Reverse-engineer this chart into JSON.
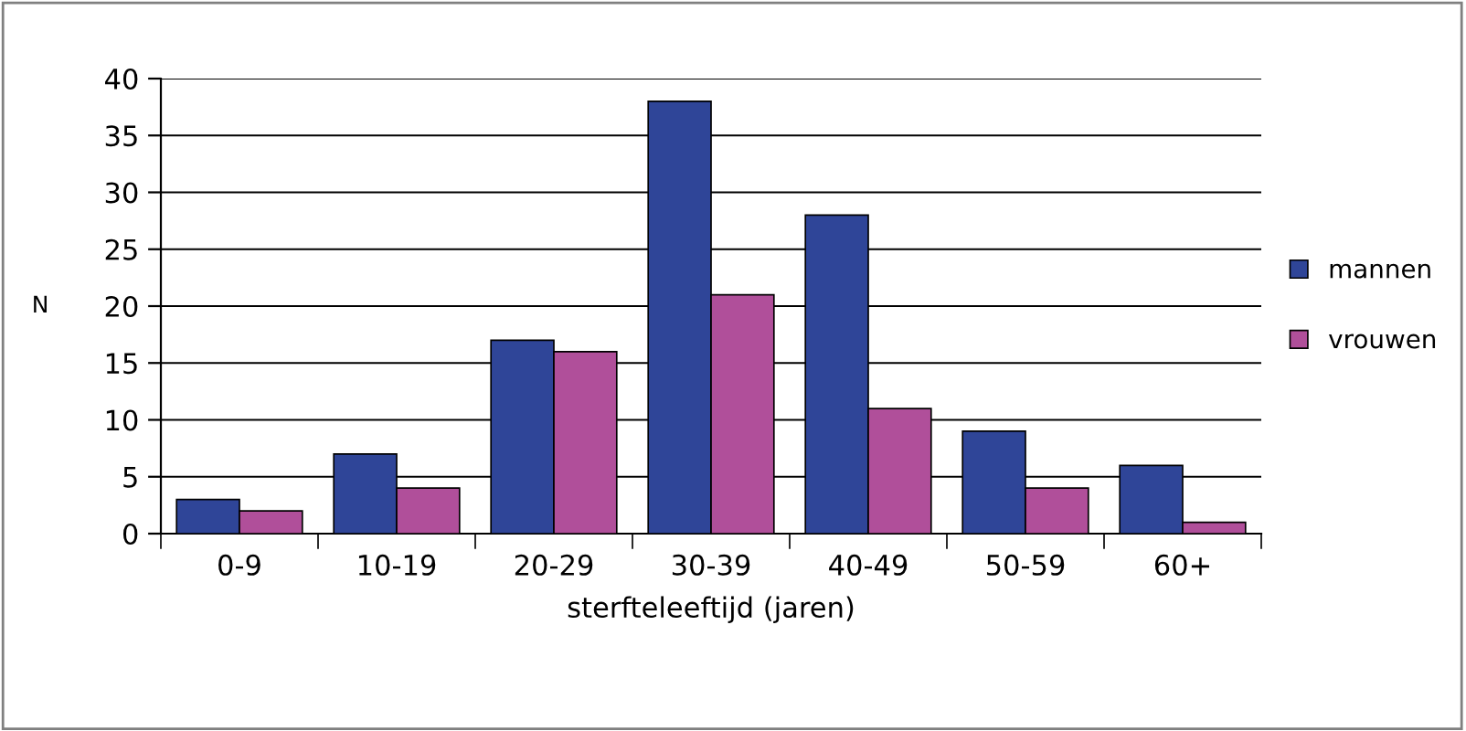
{
  "chart_data": {
    "type": "bar",
    "xlabel": "sterfteleeftijd (jaren)",
    "ylabel": "N",
    "categories": [
      "0-9",
      "10-19",
      "20-29",
      "30-39",
      "40-49",
      "50-59",
      "60+"
    ],
    "series": [
      {
        "name": "mannen",
        "color": "#2f4598",
        "values": [
          3,
          7,
          17,
          38,
          28,
          9,
          6
        ]
      },
      {
        "name": "vrouwen",
        "color": "#b04f9a",
        "values": [
          2,
          4,
          16,
          21,
          11,
          4,
          1
        ]
      }
    ],
    "ylim": [
      0,
      40
    ],
    "yticks": [
      0,
      5,
      10,
      15,
      20,
      25,
      30,
      35,
      40
    ],
    "grid": "y",
    "legend": "right"
  }
}
